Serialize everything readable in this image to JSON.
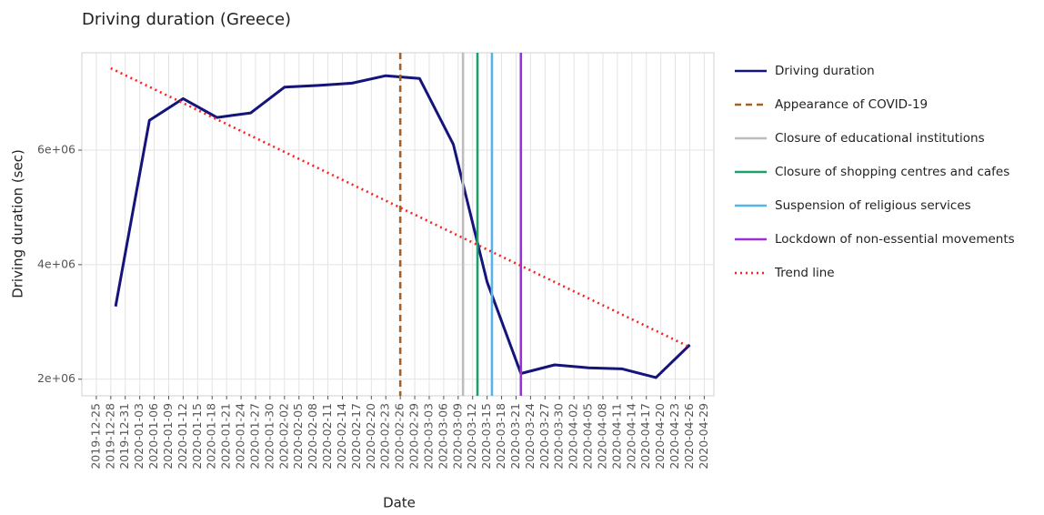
{
  "chart_data": {
    "type": "line",
    "title": "Driving duration (Greece)",
    "x_label": "Date",
    "y_label": "Driving duration (sec)",
    "xlim": [
      "2019-12-22",
      "2020-05-01"
    ],
    "ylim": [
      1710000,
      7700000
    ],
    "yticks": [
      {
        "value": 2000000,
        "label": "2e+06"
      },
      {
        "value": 4000000,
        "label": "4e+06"
      },
      {
        "value": 6000000,
        "label": "6e+06"
      }
    ],
    "xticks": [
      "2019-12-25",
      "2019-12-28",
      "2019-12-31",
      "2020-01-03",
      "2020-01-06",
      "2020-01-09",
      "2020-01-12",
      "2020-01-15",
      "2020-01-18",
      "2020-01-21",
      "2020-01-24",
      "2020-01-27",
      "2020-01-30",
      "2020-02-02",
      "2020-02-05",
      "2020-02-08",
      "2020-02-11",
      "2020-02-14",
      "2020-02-17",
      "2020-02-20",
      "2020-02-23",
      "2020-02-26",
      "2020-02-29",
      "2020-03-03",
      "2020-03-06",
      "2020-03-09",
      "2020-03-12",
      "2020-03-15",
      "2020-03-18",
      "2020-03-21",
      "2020-03-24",
      "2020-03-27",
      "2020-03-30",
      "2020-04-02",
      "2020-04-05",
      "2020-04-08",
      "2020-04-11",
      "2020-04-14",
      "2020-04-17",
      "2020-04-20",
      "2020-04-23",
      "2020-04-26",
      "2020-04-29"
    ],
    "grid": true,
    "legend": "right",
    "series": [
      {
        "name": "Driving duration",
        "color": "#14147a",
        "dash": "solid",
        "x": [
          "2019-12-29",
          "2020-01-05",
          "2020-01-12",
          "2020-01-19",
          "2020-01-26",
          "2020-02-02",
          "2020-02-09",
          "2020-02-16",
          "2020-02-23",
          "2020-03-01",
          "2020-03-08",
          "2020-03-15",
          "2020-03-22",
          "2020-03-29",
          "2020-04-05",
          "2020-04-12",
          "2020-04-19",
          "2020-04-26"
        ],
        "values": [
          3270000,
          6520000,
          6900000,
          6570000,
          6650000,
          7100000,
          7130000,
          7170000,
          7300000,
          7250000,
          6100000,
          3700000,
          2100000,
          2250000,
          2200000,
          2180000,
          2030000,
          2600000
        ]
      },
      {
        "name": "Trend line",
        "color": "#ff1f1f",
        "dash": "dotted",
        "x": [
          "2019-12-28",
          "2020-04-26"
        ],
        "values": [
          7430000,
          2560000
        ]
      }
    ],
    "events": [
      {
        "name": "Appearance of COVID-19",
        "color": "#a0622d",
        "dash": "dashed",
        "date": "2020-02-26"
      },
      {
        "name": "Closure of educational institutions",
        "color": "#bdbdbd",
        "dash": "solid",
        "date": "2020-03-10"
      },
      {
        "name": "Closure of shopping centres and cafes",
        "color": "#1f9e6a",
        "dash": "solid",
        "date": "2020-03-13"
      },
      {
        "name": "Suspension of religious services",
        "color": "#56b4e9",
        "dash": "solid",
        "date": "2020-03-16"
      },
      {
        "name": "Lockdown of non-essential movements",
        "color": "#9b30d9",
        "dash": "solid",
        "date": "2020-03-22"
      }
    ]
  }
}
